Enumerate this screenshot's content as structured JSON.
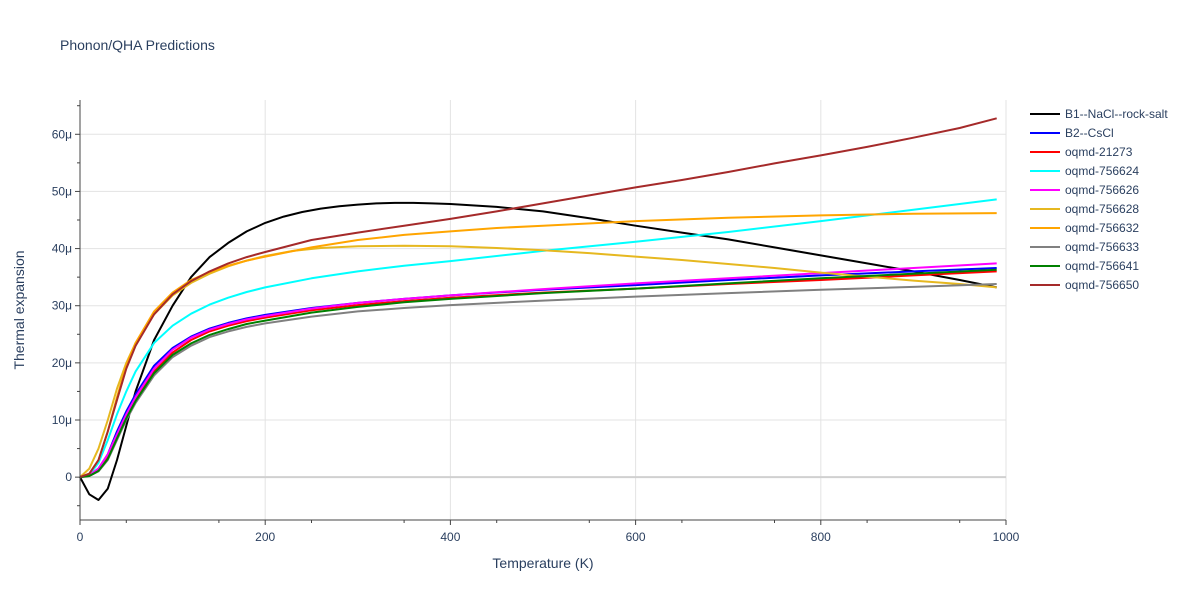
{
  "chart_data": {
    "type": "line",
    "title": "Phonon/QHA Predictions",
    "xlabel": "Temperature (K)",
    "ylabel": "Thermal expansion",
    "xlim": [
      0,
      1000
    ],
    "ylim": [
      -7.5,
      66
    ],
    "xticks": [
      0,
      200,
      400,
      600,
      800,
      1000
    ],
    "yticks": [
      0,
      10,
      20,
      30,
      40,
      50,
      60
    ],
    "ytick_labels": [
      "0",
      "10μ",
      "20μ",
      "30μ",
      "40μ",
      "50μ",
      "60μ"
    ],
    "grid": true,
    "legend_position": "right",
    "series": [
      {
        "name": "B1--NaCl--rock-salt",
        "color": "#000000",
        "x": [
          0,
          10,
          20,
          30,
          40,
          50,
          60,
          80,
          100,
          120,
          140,
          160,
          180,
          200,
          220,
          240,
          260,
          280,
          300,
          320,
          340,
          360,
          380,
          400,
          450,
          500,
          550,
          600,
          650,
          700,
          750,
          800,
          850,
          900,
          950,
          990
        ],
        "y": [
          0,
          -3,
          -4,
          -2,
          3,
          9,
          15,
          24,
          30,
          35,
          38.5,
          41,
          43,
          44.5,
          45.6,
          46.4,
          47,
          47.4,
          47.7,
          47.9,
          48,
          48,
          47.9,
          47.8,
          47.3,
          46.5,
          45.3,
          44,
          42.8,
          41.6,
          40.2,
          38.8,
          37.4,
          36,
          34.5,
          33.2
        ]
      },
      {
        "name": "B2--CsCl",
        "color": "#0000ff",
        "x": [
          0,
          10,
          20,
          30,
          40,
          50,
          60,
          80,
          100,
          120,
          140,
          160,
          180,
          200,
          250,
          300,
          350,
          400,
          500,
          600,
          700,
          800,
          900,
          990
        ],
        "y": [
          0,
          0.3,
          1.5,
          4,
          8,
          11.5,
          14.5,
          19.5,
          22.6,
          24.6,
          26,
          27,
          27.8,
          28.4,
          29.6,
          30.5,
          31.2,
          31.8,
          32.8,
          33.6,
          34.5,
          35.3,
          36,
          36.6
        ]
      },
      {
        "name": "oqmd-21273",
        "color": "#ff0000",
        "x": [
          0,
          10,
          20,
          30,
          40,
          50,
          60,
          80,
          100,
          120,
          140,
          160,
          180,
          200,
          250,
          300,
          350,
          400,
          500,
          600,
          700,
          800,
          900,
          990
        ],
        "y": [
          0,
          0.3,
          1.3,
          3.5,
          7,
          10.5,
          13.5,
          18.5,
          21.8,
          24,
          25.5,
          26.5,
          27.3,
          27.9,
          29.2,
          30.1,
          30.8,
          31.4,
          32.3,
          33,
          33.8,
          34.5,
          35.3,
          36
        ]
      },
      {
        "name": "oqmd-756624",
        "color": "#00ffff",
        "x": [
          0,
          10,
          20,
          30,
          40,
          50,
          60,
          80,
          100,
          120,
          140,
          160,
          180,
          200,
          250,
          300,
          350,
          400,
          500,
          600,
          700,
          800,
          900,
          990
        ],
        "y": [
          0,
          0.4,
          2.5,
          6.5,
          11,
          15,
          18.5,
          23.5,
          26.5,
          28.6,
          30.2,
          31.4,
          32.4,
          33.2,
          34.8,
          36,
          37,
          37.8,
          39.6,
          41.2,
          42.9,
          44.8,
          46.8,
          48.6
        ]
      },
      {
        "name": "oqmd-756626",
        "color": "#ff00ff",
        "x": [
          0,
          10,
          20,
          30,
          40,
          50,
          60,
          80,
          100,
          120,
          140,
          160,
          180,
          200,
          250,
          300,
          350,
          400,
          500,
          600,
          700,
          800,
          900,
          990
        ],
        "y": [
          0,
          0.3,
          1.5,
          4,
          7.5,
          11,
          14,
          19,
          22.3,
          24.4,
          25.8,
          26.8,
          27.6,
          28.2,
          29.5,
          30.5,
          31.2,
          31.8,
          32.9,
          33.9,
          34.8,
          35.7,
          36.6,
          37.4
        ]
      },
      {
        "name": "oqmd-756628",
        "color": "#e6b820",
        "x": [
          0,
          10,
          20,
          30,
          40,
          50,
          60,
          80,
          100,
          120,
          140,
          160,
          180,
          200,
          230,
          260,
          300,
          350,
          400,
          450,
          500,
          550,
          600,
          650,
          700,
          750,
          800,
          850,
          900,
          950,
          990
        ],
        "y": [
          0,
          1.5,
          5,
          10,
          15.5,
          20,
          23.5,
          28.5,
          31.8,
          34,
          35.6,
          36.9,
          37.9,
          38.7,
          39.6,
          40.1,
          40.4,
          40.5,
          40.4,
          40.1,
          39.7,
          39.2,
          38.6,
          38,
          37.3,
          36.6,
          35.8,
          35.1,
          34.4,
          33.8,
          33.2
        ]
      },
      {
        "name": "oqmd-756632",
        "color": "#ffa500",
        "x": [
          0,
          10,
          20,
          30,
          40,
          50,
          60,
          80,
          100,
          120,
          140,
          160,
          180,
          200,
          250,
          300,
          350,
          400,
          450,
          500,
          600,
          700,
          800,
          900,
          990
        ],
        "y": [
          0,
          0.6,
          3,
          8,
          14,
          19.5,
          23.5,
          29,
          32.3,
          34.5,
          35.9,
          37,
          37.9,
          38.6,
          40.2,
          41.5,
          42.4,
          43,
          43.6,
          44,
          44.8,
          45.4,
          45.8,
          46.1,
          46.2
        ]
      },
      {
        "name": "oqmd-756633",
        "color": "#808080",
        "x": [
          0,
          10,
          20,
          30,
          40,
          50,
          60,
          80,
          100,
          120,
          140,
          160,
          180,
          200,
          250,
          300,
          350,
          400,
          500,
          600,
          700,
          800,
          900,
          990
        ],
        "y": [
          0,
          0.2,
          1,
          3,
          6.5,
          10,
          13,
          17.8,
          21,
          23,
          24.5,
          25.5,
          26.3,
          26.9,
          28.1,
          29,
          29.6,
          30.1,
          30.9,
          31.6,
          32.2,
          32.8,
          33.3,
          33.8
        ]
      },
      {
        "name": "oqmd-756641",
        "color": "#008000",
        "x": [
          0,
          10,
          20,
          30,
          40,
          50,
          60,
          80,
          100,
          120,
          140,
          160,
          180,
          200,
          250,
          300,
          350,
          400,
          500,
          600,
          700,
          800,
          900,
          990
        ],
        "y": [
          0,
          0.2,
          1.1,
          3.2,
          6.8,
          10.3,
          13.3,
          18.2,
          21.4,
          23.4,
          24.9,
          25.9,
          26.8,
          27.4,
          28.8,
          29.8,
          30.6,
          31.2,
          32.2,
          33,
          33.9,
          34.8,
          35.6,
          36.3
        ]
      },
      {
        "name": "oqmd-756650",
        "color": "#a52a2a",
        "x": [
          0,
          10,
          20,
          30,
          40,
          50,
          60,
          80,
          100,
          120,
          140,
          160,
          180,
          200,
          250,
          300,
          350,
          400,
          450,
          500,
          550,
          600,
          650,
          700,
          750,
          800,
          850,
          900,
          950,
          990
        ],
        "y": [
          0,
          0.6,
          3,
          8,
          13.5,
          19,
          23,
          28.5,
          32,
          34.3,
          36,
          37.4,
          38.5,
          39.4,
          41.5,
          42.8,
          44,
          45.2,
          46.5,
          47.9,
          49.3,
          50.7,
          52,
          53.4,
          54.9,
          56.3,
          57.8,
          59.4,
          61.1,
          62.8
        ]
      }
    ]
  }
}
